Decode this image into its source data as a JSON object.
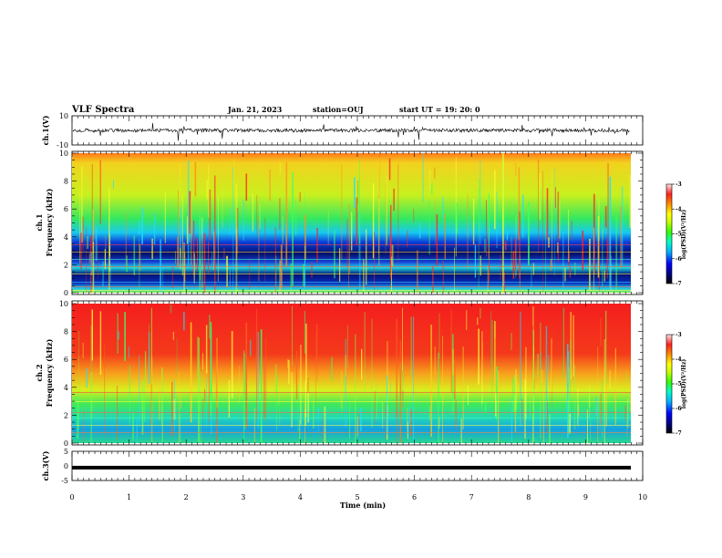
{
  "header": {
    "title": "VLF Spectra",
    "date": "Jan. 21, 2023",
    "station": "station=OUJ",
    "start": "start  UT  =   19: 20: 0"
  },
  "colors": {
    "colormap": [
      "#00006a",
      "#0000ff",
      "#00b4ff",
      "#00ffc8",
      "#32ff00",
      "#c8ff00",
      "#ffff00",
      "#ff8c00",
      "#ff2020",
      "#ffe6e6"
    ]
  },
  "chart_data": [
    {
      "type": "line",
      "panel": "ch1-waveform",
      "ylabel": "ch.1(V)",
      "ylim": [
        -10,
        10
      ],
      "yticks": [
        "10",
        "-10"
      ],
      "xlim": [
        0,
        10
      ],
      "baseline": 0,
      "series_color": "#000000"
    },
    {
      "type": "heatmap",
      "panel": "ch1-spectrogram",
      "ylabel": "ch.1",
      "ylabel2": "Frequency (kHz)",
      "ylim": [
        0,
        10
      ],
      "yticks": [
        "0",
        "2",
        "4",
        "6",
        "8",
        "10"
      ],
      "xlim": [
        0,
        9.8
      ],
      "colorbar": {
        "label": "log(PSD)(V²/Hz)",
        "range": [
          -7,
          -3
        ],
        "ticks": [
          "-3",
          "-4",
          "-5",
          "-6",
          "-7"
        ]
      }
    },
    {
      "type": "heatmap",
      "panel": "ch2-spectrogram",
      "ylabel": "ch.2",
      "ylabel2": "Frequency (kHz)",
      "ylim": [
        0,
        10
      ],
      "yticks": [
        "0",
        "2",
        "4",
        "6",
        "8",
        "10"
      ],
      "xlim": [
        0,
        9.8
      ],
      "colorbar": {
        "label": "log(PSD)(V²/Hz)",
        "range": [
          -7,
          -3
        ],
        "ticks": [
          "-3",
          "-4",
          "-5",
          "-6",
          "-7"
        ]
      }
    },
    {
      "type": "line",
      "panel": "ch3-waveform",
      "ylabel": "ch.3(V)",
      "ylim": [
        -5,
        5
      ],
      "yticks": [
        "5",
        "0",
        "-5"
      ],
      "xlim": [
        0,
        10
      ],
      "level": -0.6,
      "series_color": "#000000"
    }
  ],
  "xaxis": {
    "label": "Time (min)",
    "range": [
      0,
      10
    ],
    "ticks": [
      "0",
      "1",
      "2",
      "3",
      "4",
      "5",
      "6",
      "7",
      "8",
      "9",
      "10"
    ]
  }
}
